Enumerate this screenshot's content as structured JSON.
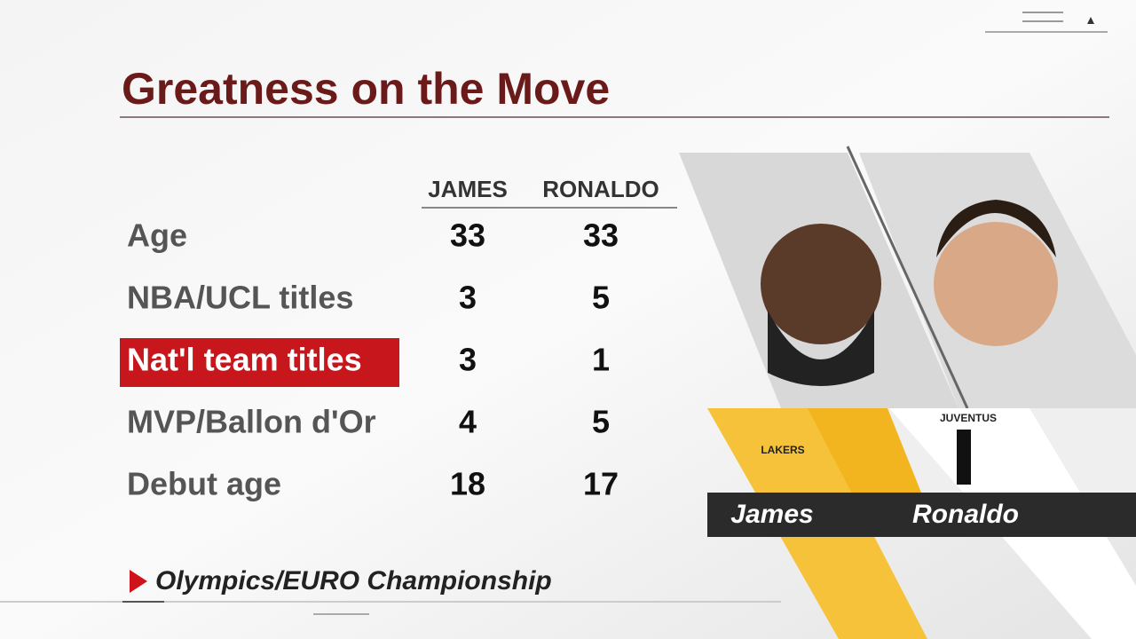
{
  "header": {
    "title": "Greatness on the Move"
  },
  "table": {
    "columns": [
      "JAMES",
      "RONALDO"
    ],
    "rows": [
      [
        "Age",
        "33",
        "33"
      ],
      [
        "NBA/UCL titles",
        "3",
        "5"
      ],
      [
        "Nat'l team titles",
        "3",
        "1"
      ],
      [
        "MVP/Ballon d'Or",
        "4",
        "5"
      ],
      [
        "Debut age",
        "18",
        "17"
      ]
    ]
  },
  "footnote": "Olympics/EURO Championship",
  "players": [
    {
      "name": "James",
      "logo": "LAKERS"
    },
    {
      "name": "Ronaldo",
      "logo": "JUVENTUS"
    }
  ]
}
